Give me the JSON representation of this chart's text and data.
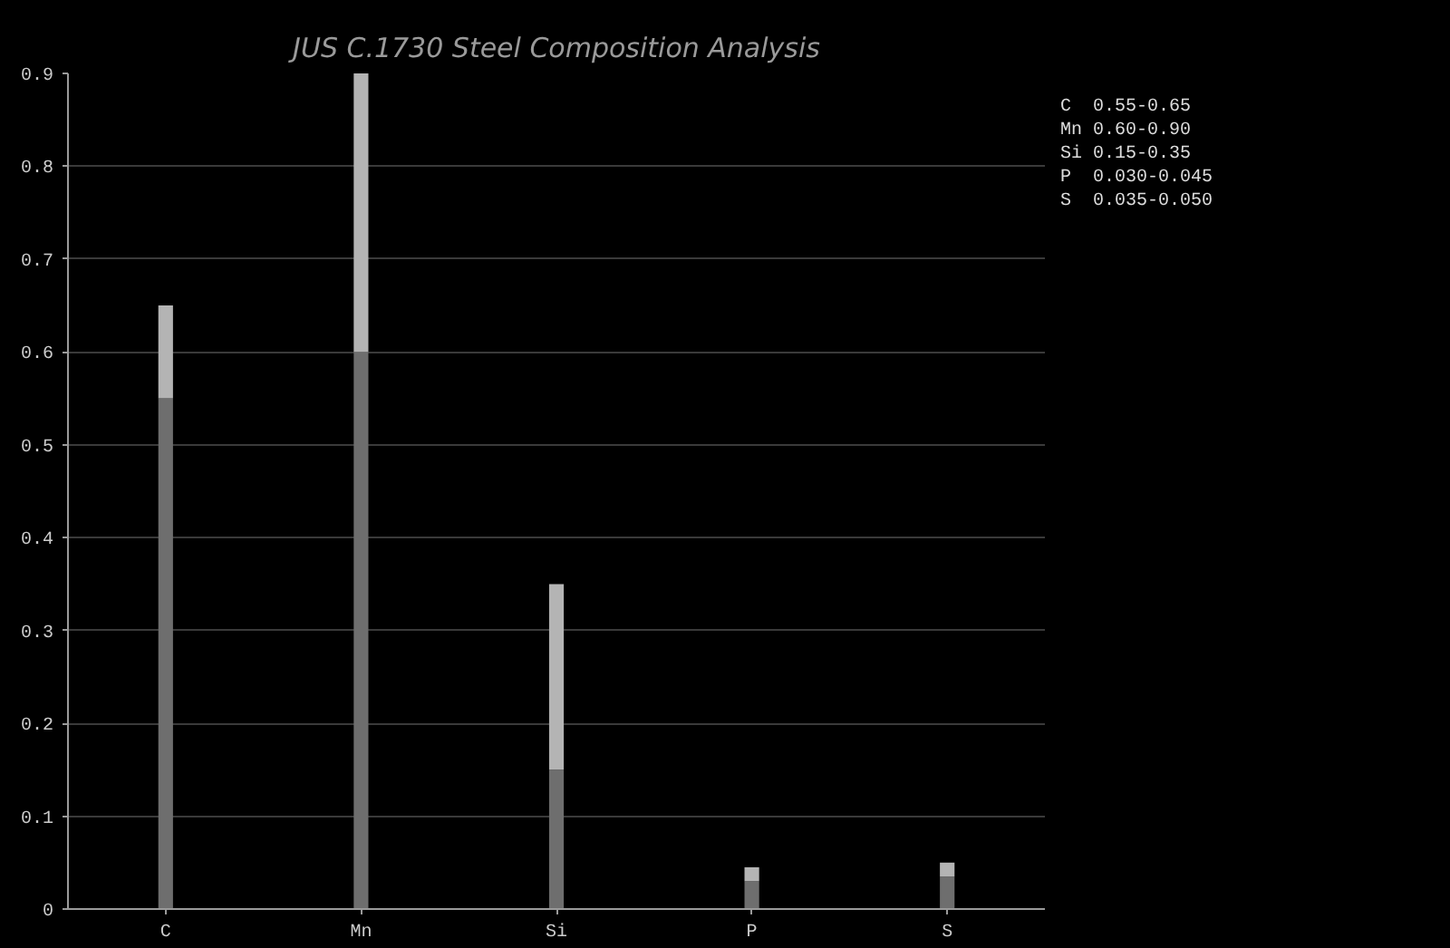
{
  "chart_data": {
    "type": "bar",
    "title": "JUS C.1730 Steel Composition Analysis",
    "categories": [
      "C",
      "Mn",
      "Si",
      "P",
      "S"
    ],
    "stacked": true,
    "series": [
      {
        "color": "#6e6e6e",
        "values": [
          0.55,
          0.6,
          0.15,
          0.03,
          0.035
        ]
      },
      {
        "color": "#b4b4b4",
        "values": [
          0.1,
          0.3,
          0.2,
          0.015,
          0.015
        ]
      }
    ],
    "ylim": [
      0,
      0.9
    ],
    "yticks": [
      0,
      0.1,
      0.2,
      0.3,
      0.4,
      0.5,
      0.6,
      0.7,
      0.8,
      0.9
    ],
    "grid": "y",
    "annotations": [
      "C  0.55-0.65",
      "Mn 0.60-0.90",
      "Si 0.15-0.35",
      "P  0.030-0.045",
      "S  0.035-0.050"
    ]
  }
}
